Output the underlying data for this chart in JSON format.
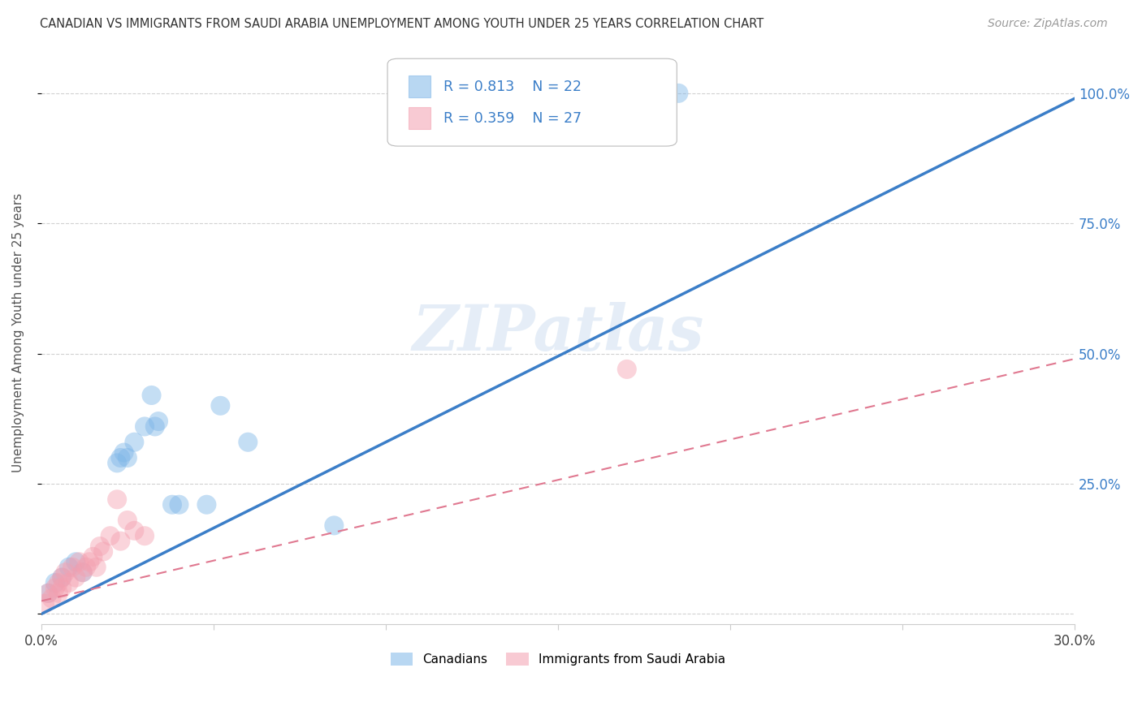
{
  "title": "CANADIAN VS IMMIGRANTS FROM SAUDI ARABIA UNEMPLOYMENT AMONG YOUTH UNDER 25 YEARS CORRELATION CHART",
  "source": "Source: ZipAtlas.com",
  "ylabel": "Unemployment Among Youth under 25 years",
  "xlim": [
    0.0,
    0.3
  ],
  "ylim": [
    -0.02,
    1.1
  ],
  "xticks": [
    0.0,
    0.05,
    0.1,
    0.15,
    0.2,
    0.25,
    0.3
  ],
  "xtick_labels": [
    "0.0%",
    "",
    "",
    "",
    "",
    "",
    "30.0%"
  ],
  "ytick_positions": [
    0.0,
    0.25,
    0.5,
    0.75,
    1.0
  ],
  "ytick_labels": [
    "",
    "25.0%",
    "50.0%",
    "75.0%",
    "100.0%"
  ],
  "canadians_R": 0.813,
  "canadians_N": 22,
  "immigrants_R": 0.359,
  "immigrants_N": 27,
  "canadian_color": "#7EB6E8",
  "immigrant_color": "#F4A0B0",
  "blue_line_color": "#3B7EC8",
  "pink_line_color": "#E07890",
  "watermark": "ZIPatlas",
  "blue_line_slope": 3.3,
  "blue_line_intercept": 0.0,
  "pink_line_slope": 1.55,
  "pink_line_intercept": 0.025,
  "canadians_x": [
    0.002,
    0.004,
    0.006,
    0.008,
    0.01,
    0.012,
    0.022,
    0.023,
    0.024,
    0.025,
    0.027,
    0.03,
    0.032,
    0.033,
    0.034,
    0.038,
    0.04,
    0.048,
    0.052,
    0.06,
    0.085,
    0.185
  ],
  "canadians_y": [
    0.04,
    0.06,
    0.07,
    0.09,
    0.1,
    0.08,
    0.29,
    0.3,
    0.31,
    0.3,
    0.33,
    0.36,
    0.42,
    0.36,
    0.37,
    0.21,
    0.21,
    0.21,
    0.4,
    0.33,
    0.17,
    1.0
  ],
  "immigrants_x": [
    0.001,
    0.002,
    0.003,
    0.004,
    0.005,
    0.005,
    0.006,
    0.006,
    0.007,
    0.008,
    0.009,
    0.01,
    0.011,
    0.012,
    0.013,
    0.014,
    0.015,
    0.016,
    0.017,
    0.018,
    0.02,
    0.022,
    0.023,
    0.025,
    0.027,
    0.03,
    0.17
  ],
  "immigrants_y": [
    0.02,
    0.04,
    0.03,
    0.05,
    0.06,
    0.04,
    0.07,
    0.05,
    0.08,
    0.06,
    0.09,
    0.07,
    0.1,
    0.08,
    0.09,
    0.1,
    0.11,
    0.09,
    0.13,
    0.12,
    0.15,
    0.22,
    0.14,
    0.18,
    0.16,
    0.15,
    0.47
  ]
}
